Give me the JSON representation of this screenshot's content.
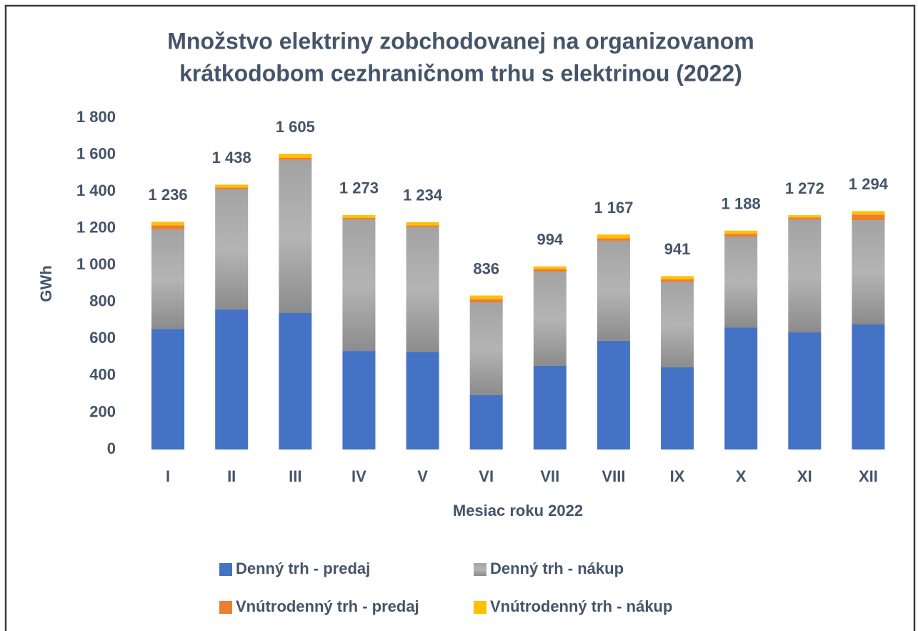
{
  "chart_data": {
    "type": "stacked_bar",
    "title": [
      "Množstvo elektriny zobchodovanej na organizovanom",
      "krátkodobom cezhraničnom trhu s elektrinou (2022)"
    ],
    "y_axis_label": "GWh",
    "x_axis_label": "Mesiac roku 2022",
    "categories": [
      "I",
      "II",
      "III",
      "IV",
      "V",
      "VI",
      "VII",
      "VIII",
      "IX",
      "X",
      "XI",
      "XII"
    ],
    "series": [
      {
        "name": "Denný trh - predaj",
        "color": "#4472c4",
        "values": [
          655,
          760,
          741,
          535,
          530,
          295,
          454,
          590,
          446,
          663,
          636,
          679
        ]
      },
      {
        "name": "Denný trh - nákup",
        "color": "#a5a5a5",
        "values": [
          540,
          654,
          831,
          714,
          678,
          504,
          512,
          543,
          464,
          493,
          613,
          566
        ]
      },
      {
        "name": "Vnútrodenný trh - predaj",
        "color": "#ed7d31",
        "values": [
          22,
          8,
          12,
          8,
          8,
          17,
          14,
          14,
          14,
          15,
          10,
          30
        ]
      },
      {
        "name": "Vnútrodenný trh - nákup",
        "color": "#ffc000",
        "values": [
          19,
          16,
          21,
          16,
          18,
          20,
          14,
          20,
          17,
          17,
          13,
          19
        ]
      }
    ],
    "totals": [
      1236,
      1438,
      1605,
      1273,
      1234,
      836,
      994,
      1167,
      941,
      1188,
      1272,
      1294
    ],
    "total_labels": [
      "1 236",
      "1 438",
      "1 605",
      "1 273",
      "1 234",
      "836",
      "994",
      "1 167",
      "941",
      "1 188",
      "1 272",
      "1 294"
    ],
    "ylim": [
      0,
      1800
    ],
    "yticks": [
      0,
      200,
      400,
      600,
      800,
      {
        "value": 1000,
        "label": "1 000"
      },
      {
        "value": 1200,
        "label": "1 200"
      },
      {
        "value": 1400,
        "label": "1 400"
      },
      {
        "value": 1600,
        "label": "1 600"
      },
      {
        "value": 1800,
        "label": "1 800"
      }
    ],
    "grid": false,
    "legend": "bottom"
  }
}
